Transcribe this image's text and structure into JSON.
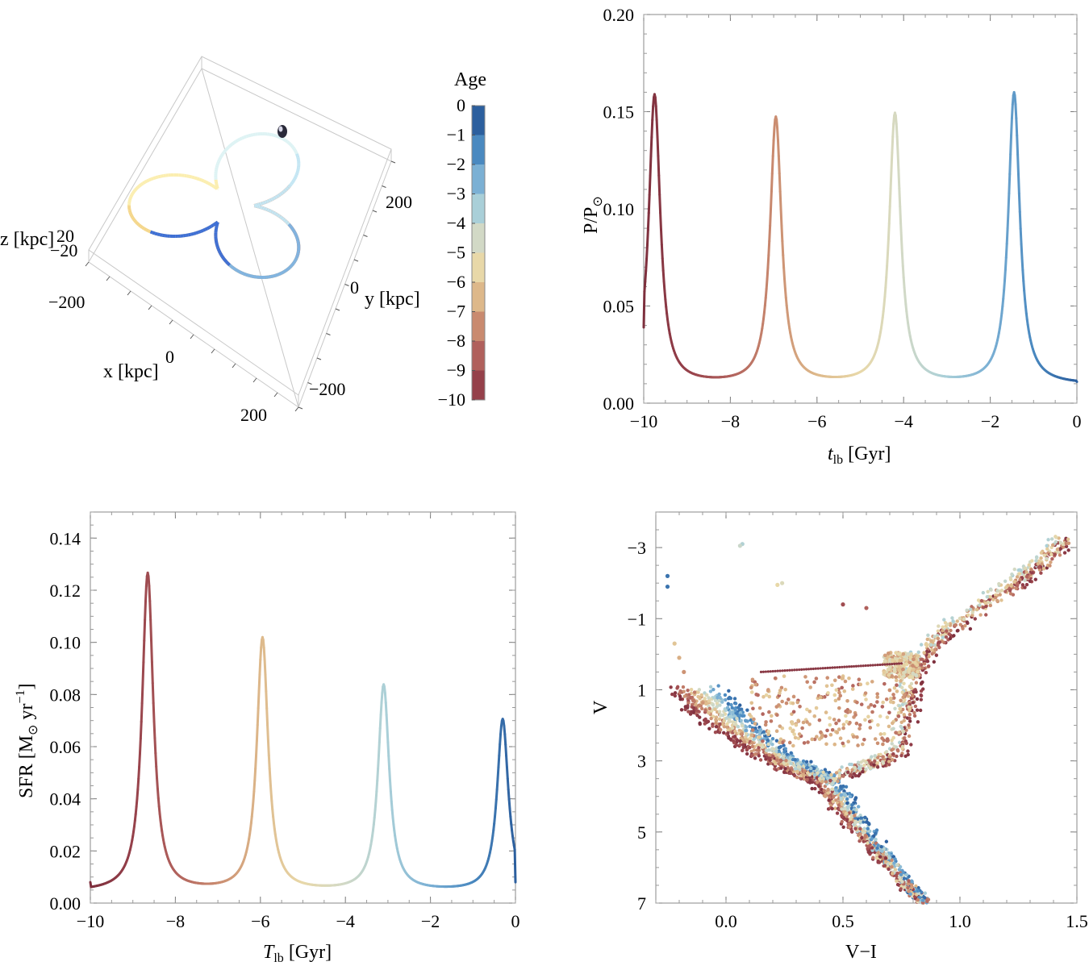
{
  "chart_data": [
    {
      "type": "line3d",
      "panel": "orbit",
      "xlabel": "x [kpc]",
      "ylabel": "y [kpc]",
      "zlabel": "z [kpc]",
      "x_ticks": [
        "−200",
        "0",
        "200"
      ],
      "y_ticks": [
        "−200",
        "0",
        "200"
      ],
      "z_ticks": [
        "−20",
        "20"
      ],
      "colorbar": {
        "title": "Age",
        "range": [
          -10,
          0
        ],
        "tick_labels": [
          "0",
          "−1",
          "−2",
          "−3",
          "−4",
          "−5",
          "−6",
          "−7",
          "−8",
          "−9",
          "−10"
        ],
        "colors": [
          "#2c5f9e",
          "#4a89c0",
          "#7bb0d4",
          "#a9cfd8",
          "#d2d9c6",
          "#e8d8a8",
          "#ddb88a",
          "#c98a6f",
          "#b0605c",
          "#95404a"
        ]
      },
      "orbit_colors": [
        "#e0622d",
        "#f0a24b",
        "#f4d68a",
        "#fbeeb0",
        "#def3f4",
        "#c4e6f3",
        "#7fb4e2",
        "#3d6fd6"
      ]
    },
    {
      "type": "line",
      "panel": "pressure",
      "xlabel": "t",
      "xlabel_sub": "lb",
      "xlabel_unit": " [Gyr]",
      "ylabel": "P/P",
      "ylabel_sub": "⊙",
      "xlim": [
        -10,
        0
      ],
      "ylim": [
        0,
        0.2
      ],
      "x_ticks": [
        "−10",
        "−8",
        "−6",
        "−4",
        "−2",
        "0"
      ],
      "y_ticks": [
        "0.00",
        "0.05",
        "0.10",
        "0.15",
        "0.20"
      ],
      "peaks": [
        {
          "t": -9.75,
          "value": 0.157
        },
        {
          "t": -6.95,
          "value": 0.145
        },
        {
          "t": -4.2,
          "value": 0.147
        },
        {
          "t": -1.45,
          "value": 0.158
        }
      ],
      "minima": [
        {
          "t": -8.4,
          "value": 0.011
        },
        {
          "t": -5.6,
          "value": 0.011
        },
        {
          "t": -2.85,
          "value": 0.011
        }
      ],
      "start": {
        "t": -10,
        "value": 0.039
      },
      "end": {
        "t": 0,
        "value": 0.011
      }
    },
    {
      "type": "line",
      "panel": "sfr",
      "xlabel": "T",
      "xlabel_sub": "lb",
      "xlabel_unit": " [Gyr]",
      "ylabel": "SFR [M",
      "ylabel_sub": "⊙",
      "ylabel_unit": " yr",
      "ylabel_sup": "−1",
      "ylabel_close": "]",
      "xlim": [
        -10,
        0
      ],
      "ylim": [
        0,
        0.15
      ],
      "x_ticks": [
        "−10",
        "−8",
        "−6",
        "−4",
        "−2",
        "0"
      ],
      "y_ticks": [
        "0.00",
        "0.02",
        "0.04",
        "0.06",
        "0.08",
        "0.10",
        "0.12",
        "0.14"
      ],
      "peaks": [
        {
          "t": -8.65,
          "value": 0.13
        },
        {
          "t": -5.95,
          "value": 0.105
        },
        {
          "t": -3.1,
          "value": 0.087
        },
        {
          "t": -0.3,
          "value": 0.074
        }
      ],
      "minima": [
        {
          "t": -7.3,
          "value": 0.006
        },
        {
          "t": -4.5,
          "value": 0.005
        },
        {
          "t": -1.7,
          "value": 0.004
        }
      ],
      "start": {
        "t": -10,
        "value": 0.008
      },
      "end": {
        "t": 0,
        "value": 0.008
      }
    },
    {
      "type": "scatter",
      "panel": "cmd",
      "xlabel": "V−I",
      "ylabel": "V",
      "xlim": [
        -0.3,
        1.5
      ],
      "ylim": [
        7,
        -4
      ],
      "x_ticks": [
        "0.0",
        "0.5",
        "1.0",
        "1.5"
      ],
      "y_ticks": [
        "−3",
        "−1",
        "1",
        "3",
        "5",
        "7"
      ],
      "ridge_x": [
        -0.12,
        -0.05,
        0.05,
        0.15,
        0.25,
        0.35,
        0.42,
        0.5,
        0.58,
        0.68,
        0.78,
        0.85
      ],
      "ridge_y": [
        1.0,
        1.6,
        2.1,
        2.6,
        3.0,
        3.35,
        3.5,
        4.25,
        4.95,
        5.75,
        6.55,
        7.0
      ],
      "rgb_x": [
        0.45,
        0.6,
        0.73,
        0.77,
        0.8,
        0.85,
        0.95,
        1.1,
        1.25,
        1.35,
        1.45
      ],
      "rgb_y": [
        3.45,
        3.15,
        2.8,
        1.5,
        0.5,
        -0.1,
        -0.7,
        -1.4,
        -2.1,
        -2.6,
        -3.2
      ],
      "red_clump": {
        "x": 0.75,
        "y": 0.3
      },
      "hb_line": {
        "x0": 0.15,
        "x1": 0.75,
        "y": 0.5
      },
      "outliers": [
        {
          "x": -0.25,
          "y": -2.2
        },
        {
          "x": -0.25,
          "y": -1.9
        },
        {
          "x": 0.07,
          "y": -3.1
        },
        {
          "x": 0.06,
          "y": -3.05
        },
        {
          "x": 0.24,
          "y": -2.0
        },
        {
          "x": 0.22,
          "y": -1.95
        },
        {
          "x": -0.22,
          "y": -0.3
        },
        {
          "x": -0.2,
          "y": 0.1
        },
        {
          "x": -0.18,
          "y": 0.5
        },
        {
          "x": -0.14,
          "y": 1.3
        },
        {
          "x": 0.6,
          "y": -1.3
        },
        {
          "x": 0.5,
          "y": -1.4
        }
      ]
    }
  ]
}
